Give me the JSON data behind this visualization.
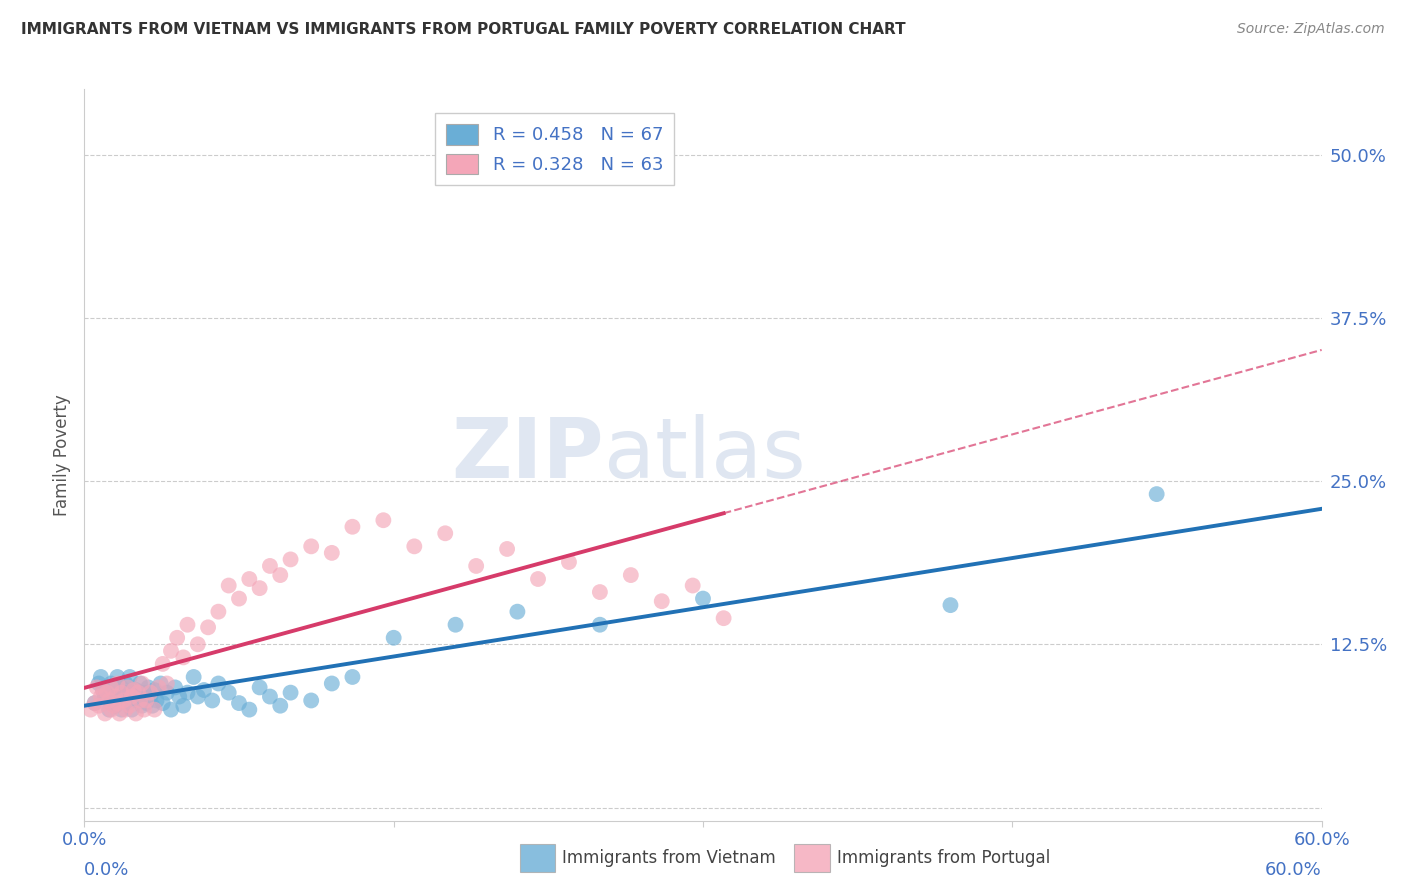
{
  "title": "IMMIGRANTS FROM VIETNAM VS IMMIGRANTS FROM PORTUGAL FAMILY POVERTY CORRELATION CHART",
  "source": "Source: ZipAtlas.com",
  "ylabel": "Family Poverty",
  "xlim": [
    0.0,
    0.6
  ],
  "ylim": [
    -0.01,
    0.55
  ],
  "xticks": [
    0.0,
    0.15,
    0.3,
    0.45,
    0.6
  ],
  "xticklabels": [
    "0.0%",
    "",
    "",
    "",
    "60.0%"
  ],
  "yticks": [
    0.0,
    0.125,
    0.25,
    0.375,
    0.5
  ],
  "yticklabels": [
    "",
    "12.5%",
    "25.0%",
    "37.5%",
    "50.0%"
  ],
  "vietnam_color": "#6aaed6",
  "portugal_color": "#f4a6b8",
  "vietnam_line_color": "#2171b5",
  "portugal_line_color": "#d63b6a",
  "legend_r_vietnam": "R = 0.458",
  "legend_n_vietnam": "N = 67",
  "legend_r_portugal": "R = 0.328",
  "legend_n_portugal": "N = 63",
  "watermark_zip": "ZIP",
  "watermark_atlas": "atlas",
  "vietnam_x": [
    0.005,
    0.007,
    0.008,
    0.009,
    0.01,
    0.011,
    0.012,
    0.012,
    0.013,
    0.013,
    0.014,
    0.015,
    0.015,
    0.016,
    0.016,
    0.017,
    0.018,
    0.018,
    0.019,
    0.02,
    0.02,
    0.021,
    0.022,
    0.022,
    0.023,
    0.024,
    0.025,
    0.026,
    0.027,
    0.028,
    0.029,
    0.03,
    0.031,
    0.032,
    0.033,
    0.034,
    0.035,
    0.037,
    0.038,
    0.04,
    0.042,
    0.044,
    0.046,
    0.048,
    0.05,
    0.053,
    0.055,
    0.058,
    0.062,
    0.065,
    0.07,
    0.075,
    0.08,
    0.085,
    0.09,
    0.095,
    0.1,
    0.11,
    0.12,
    0.13,
    0.15,
    0.18,
    0.21,
    0.25,
    0.3,
    0.42,
    0.52
  ],
  "vietnam_y": [
    0.08,
    0.095,
    0.1,
    0.09,
    0.085,
    0.092,
    0.075,
    0.088,
    0.08,
    0.095,
    0.085,
    0.078,
    0.092,
    0.088,
    0.1,
    0.085,
    0.092,
    0.075,
    0.088,
    0.082,
    0.095,
    0.08,
    0.088,
    0.1,
    0.075,
    0.085,
    0.09,
    0.082,
    0.095,
    0.078,
    0.088,
    0.08,
    0.092,
    0.085,
    0.078,
    0.09,
    0.082,
    0.095,
    0.08,
    0.088,
    0.075,
    0.092,
    0.085,
    0.078,
    0.088,
    0.1,
    0.085,
    0.09,
    0.082,
    0.095,
    0.088,
    0.08,
    0.075,
    0.092,
    0.085,
    0.078,
    0.088,
    0.082,
    0.095,
    0.1,
    0.13,
    0.14,
    0.15,
    0.14,
    0.16,
    0.155,
    0.24
  ],
  "portugal_x": [
    0.003,
    0.005,
    0.006,
    0.007,
    0.008,
    0.009,
    0.01,
    0.011,
    0.012,
    0.013,
    0.013,
    0.014,
    0.015,
    0.016,
    0.016,
    0.017,
    0.018,
    0.019,
    0.02,
    0.021,
    0.022,
    0.023,
    0.024,
    0.025,
    0.026,
    0.027,
    0.028,
    0.029,
    0.03,
    0.032,
    0.034,
    0.036,
    0.038,
    0.04,
    0.042,
    0.045,
    0.048,
    0.05,
    0.055,
    0.06,
    0.065,
    0.07,
    0.075,
    0.08,
    0.085,
    0.09,
    0.095,
    0.1,
    0.11,
    0.12,
    0.13,
    0.145,
    0.16,
    0.175,
    0.19,
    0.205,
    0.22,
    0.235,
    0.25,
    0.265,
    0.28,
    0.295,
    0.31
  ],
  "portugal_y": [
    0.075,
    0.08,
    0.092,
    0.078,
    0.085,
    0.09,
    0.072,
    0.088,
    0.082,
    0.075,
    0.092,
    0.078,
    0.085,
    0.095,
    0.08,
    0.072,
    0.088,
    0.082,
    0.075,
    0.092,
    0.078,
    0.085,
    0.09,
    0.072,
    0.088,
    0.082,
    0.095,
    0.075,
    0.082,
    0.088,
    0.075,
    0.092,
    0.11,
    0.095,
    0.12,
    0.13,
    0.115,
    0.14,
    0.125,
    0.138,
    0.15,
    0.17,
    0.16,
    0.175,
    0.168,
    0.185,
    0.178,
    0.19,
    0.2,
    0.195,
    0.215,
    0.22,
    0.2,
    0.21,
    0.185,
    0.198,
    0.175,
    0.188,
    0.165,
    0.178,
    0.158,
    0.17,
    0.145
  ]
}
